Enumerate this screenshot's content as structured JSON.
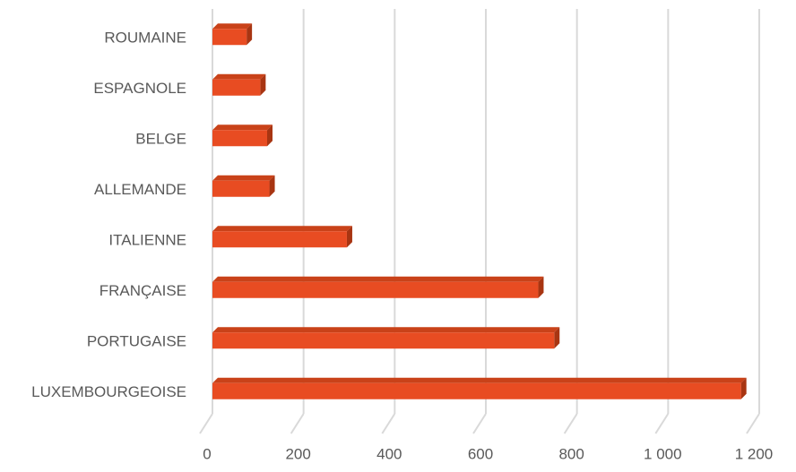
{
  "chart_data": {
    "type": "bar",
    "orientation": "horizontal",
    "style": "3d",
    "categories": [
      "ROUMAINE",
      "ESPAGNOLE",
      "BELGE",
      "ALLEMANDE",
      "ITALIENNE",
      "FRANÇAISE",
      "PORTUGAISE",
      "LUXEMBOURGEOISE"
    ],
    "values": [
      75,
      105,
      120,
      125,
      295,
      715,
      750,
      1160
    ],
    "x_ticks": [
      0,
      200,
      400,
      600,
      800,
      1000,
      1200
    ],
    "x_tick_labels": [
      "0",
      "200",
      "400",
      "600",
      "800",
      "1 000",
      "1 200"
    ],
    "xlim": [
      0,
      1200
    ],
    "grid": true,
    "legend": "none",
    "colors": {
      "bar_front": "#e84c22",
      "bar_top": "#c94219",
      "bar_side": "#a83512",
      "grid": "#d9d9d9",
      "text": "#595959"
    }
  }
}
